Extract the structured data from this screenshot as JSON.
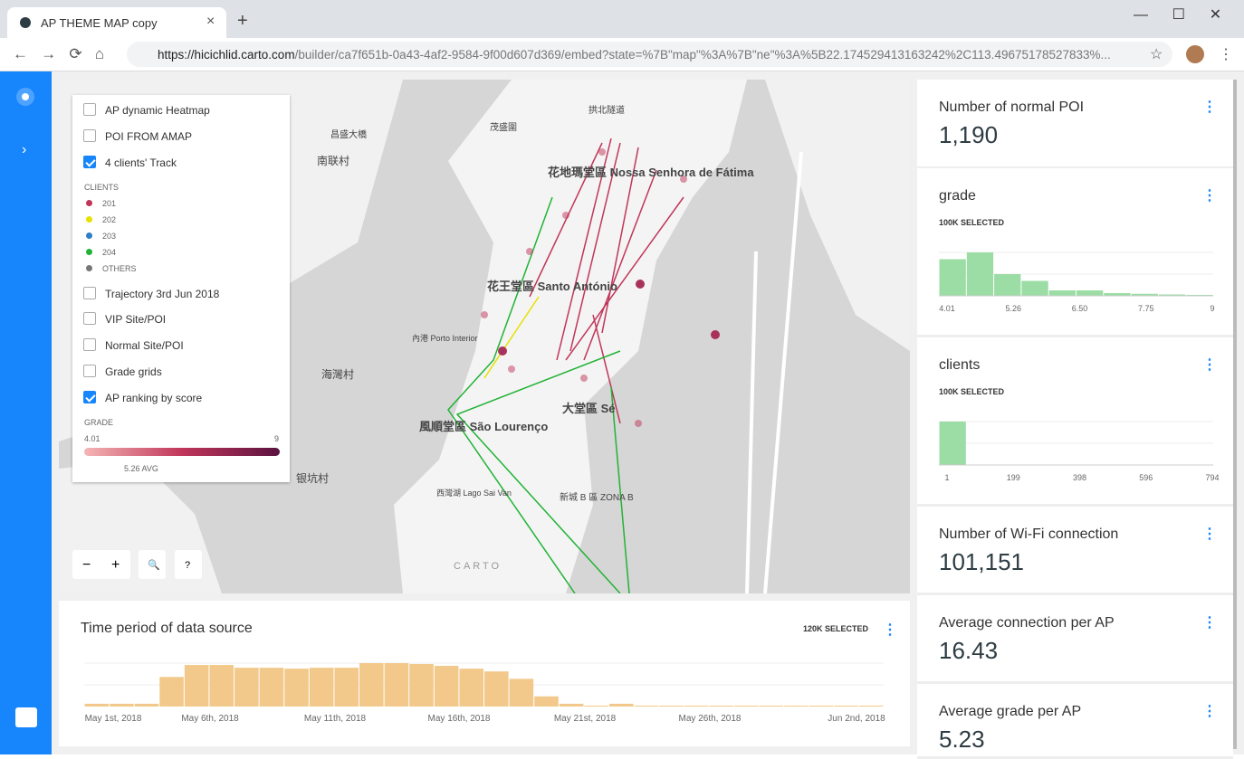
{
  "browser": {
    "tab_title": "AP THEME MAP copy",
    "url_host": "https://hicichlid.carto.com",
    "url_path": "/builder/ca7f651b-0a43-4af2-9584-9f00d607d369/embed?state=%7B\"map\"%3A%7B\"ne\"%3A%5B22.174529413163242%2C113.49675178527833%..."
  },
  "layers": [
    {
      "label": "AP dynamic Heatmap",
      "checked": false
    },
    {
      "label": "POI FROM AMAP",
      "checked": false
    },
    {
      "label": "4 clients' Track",
      "checked": true
    },
    {
      "label": "Trajectory 3rd Jun 2018",
      "checked": false
    },
    {
      "label": "VIP Site/POI",
      "checked": false
    },
    {
      "label": "Normal Site/POI",
      "checked": false
    },
    {
      "label": "Grade grids",
      "checked": false
    },
    {
      "label": "AP ranking by score",
      "checked": true
    }
  ],
  "clients_legend": {
    "title": "CLIENTS",
    "items": [
      {
        "label": "201",
        "color": "#c0365a"
      },
      {
        "label": "202",
        "color": "#e8e000"
      },
      {
        "label": "203",
        "color": "#2e7ec8"
      },
      {
        "label": "204",
        "color": "#21b335"
      },
      {
        "label": "OTHERS",
        "color": "#777777"
      }
    ]
  },
  "grade_legend": {
    "title": "GRADE",
    "min": "4.01",
    "max": "9",
    "avg": "5.26 AVG"
  },
  "map_labels": [
    "南联村",
    "花地瑪堂區 Nossa Senhora de Fátima",
    "花王堂區 Santo António",
    "大堂區 Sé",
    "風順堂區 São Lourenço",
    "海灣村",
    "银坑村",
    "新城 B 區 ZONA B",
    "西灣湖 Lago Sai Van",
    "內港 Porto Interior",
    "茂盛圍",
    "拱北隧道",
    "昌盛大橋",
    "CARTO"
  ],
  "widgets": [
    {
      "title": "Number of normal POI",
      "value": "1,190"
    },
    {
      "title": "Number of Wi-Fi connection",
      "value": "101,151"
    },
    {
      "title": "Average connection per AP",
      "value": "16.43"
    },
    {
      "title": "Average grade per AP",
      "value": "5.23"
    }
  ],
  "histograms": [
    {
      "title": "grade",
      "selected": "100K SELECTED",
      "ticks": [
        "4.01",
        "5.26",
        "6.50",
        "7.75",
        "9"
      ],
      "values": [
        27,
        32,
        16,
        11,
        4,
        4,
        2,
        1.5,
        1,
        0.7
      ],
      "color": "#9bdda4"
    },
    {
      "title": "clients",
      "selected": "100K SELECTED",
      "ticks": [
        "1",
        "199",
        "398",
        "596",
        "794"
      ],
      "values": [
        99,
        0.3,
        0.2,
        0.1,
        0.1,
        0.1,
        0.1,
        0.1,
        0.1,
        0.1
      ],
      "color": "#9bdda4"
    }
  ],
  "time_widget": {
    "title": "Time period of data source",
    "selected": "120K SELECTED",
    "color": "#f2c98b",
    "ticks": [
      "May 1st, 2018",
      "May 6th, 2018",
      "May 11th, 2018",
      "May 16th, 2018",
      "May 21st, 2018",
      "May 26th, 2018",
      "Jun 2nd, 2018"
    ],
    "values": [
      0.3,
      0.3,
      0.3,
      3.2,
      4.5,
      4.5,
      4.2,
      4.2,
      4.1,
      4.2,
      4.2,
      4.7,
      4.7,
      4.6,
      4.4,
      4.1,
      3.8,
      3.0,
      1.1,
      0.3,
      0.1,
      0.3,
      0.1,
      0.1,
      0.1,
      0.1,
      0.1,
      0.1,
      0.1,
      0.1,
      0.1,
      0.1
    ]
  }
}
